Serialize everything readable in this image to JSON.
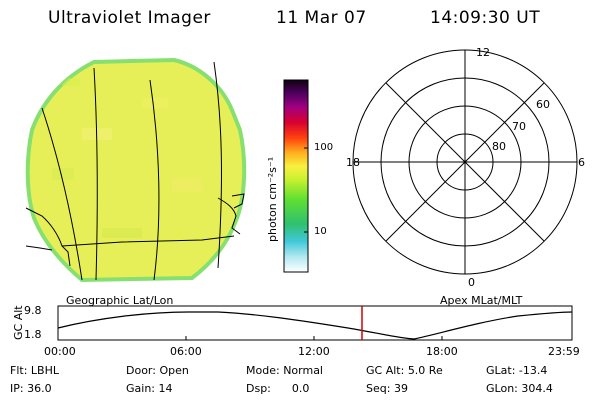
{
  "header": {
    "instrument": "Ultraviolet Imager",
    "date": "11 Mar 07",
    "time": "14:09:30 UT"
  },
  "colorbar": {
    "unit_label": "photon cm⁻²s⁻¹",
    "tick_labels": [
      "100",
      "10"
    ]
  },
  "polar": {
    "mlt_labels": {
      "top": "12",
      "right": "6",
      "bottom": "0",
      "left": "18"
    },
    "lat_labels": [
      "60",
      "70",
      "80"
    ]
  },
  "panels": {
    "left_caption": "Geographic Lat/Lon",
    "right_caption": "Apex MLat/MLT"
  },
  "altitude_plot": {
    "ylabel": "GC Alt",
    "y_ticks": [
      "9.8",
      "1.8"
    ],
    "x_ticks": [
      "00:00",
      "06:00",
      "12:00",
      "18:00",
      "23:59"
    ],
    "current_time_marker": "14:09"
  },
  "status": {
    "filter_label": "Flt:",
    "filter_value": "LBHL",
    "ip_label": "IP:",
    "ip_value": "36.0",
    "door_label": "Door:",
    "door_value": "Open",
    "gain_label": "Gain:",
    "gain_value": "14",
    "mode_label": "Mode:",
    "mode_value": "Normal",
    "dsp_label": "Dsp:",
    "dsp_value": "0.0",
    "gcalt_label": "GC Alt:",
    "gcalt_value": "5.0 Re",
    "seq_label": "Seq:",
    "seq_value": "39",
    "glat_label": "GLat:",
    "glat_value": "-13.4",
    "glon_label": "GLon:",
    "glon_value": "304.4"
  },
  "colors": {
    "image_fill": "#e8f060",
    "image_rim": "#80e070",
    "marker": "#d00000"
  }
}
